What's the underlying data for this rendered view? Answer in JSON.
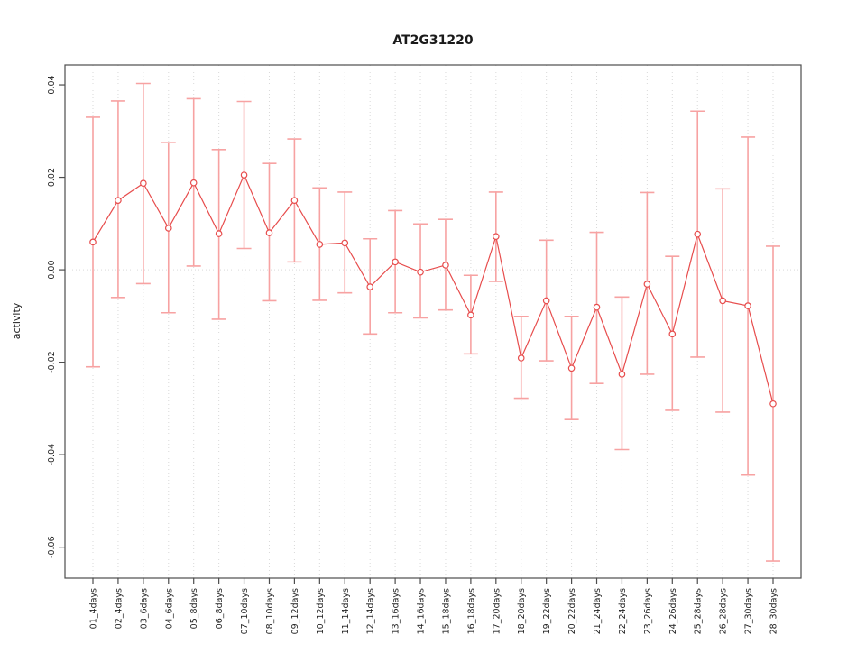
{
  "chart_data": {
    "type": "scatter",
    "subtype": "points-with-error-bars",
    "title": "AT2G31220",
    "xlabel": "",
    "ylabel": "activity",
    "legend_position": "none",
    "categories": [
      "01_4days",
      "02_4days",
      "03_6days",
      "04_6days",
      "05_8days",
      "06_8days",
      "07_10days",
      "08_10days",
      "09_12days",
      "10_12days",
      "11_14days",
      "12_14days",
      "13_16days",
      "14_16days",
      "15_18days",
      "16_18days",
      "17_20days",
      "18_20days",
      "19_22days",
      "20_22days",
      "21_24days",
      "22_24days",
      "23_26days",
      "24_26days",
      "25_28days",
      "26_28days",
      "27_30days",
      "28_30days"
    ],
    "series": [
      {
        "name": "activity",
        "means": [
          0.006,
          0.015,
          0.0187,
          0.009,
          0.0188,
          0.0078,
          0.0205,
          0.008,
          0.015,
          0.0055,
          0.0058,
          -0.0037,
          0.0017,
          -0.0005,
          0.001,
          -0.0098,
          0.0072,
          -0.0191,
          -0.0067,
          -0.0213,
          -0.0081,
          -0.0226,
          -0.0031,
          -0.0139,
          0.0077,
          -0.0067,
          -0.0078,
          -0.029
        ],
        "lower": [
          -0.021,
          -0.006,
          -0.003,
          -0.0093,
          0.0008,
          -0.0107,
          0.0046,
          -0.0067,
          0.0017,
          -0.0066,
          -0.005,
          -0.0139,
          -0.0093,
          -0.0104,
          -0.0087,
          -0.0182,
          -0.0025,
          -0.0278,
          -0.0197,
          -0.0324,
          -0.0246,
          -0.0389,
          -0.0226,
          -0.0304,
          -0.0189,
          -0.0308,
          -0.0444,
          -0.063
        ],
        "upper": [
          0.033,
          0.0365,
          0.0403,
          0.0275,
          0.037,
          0.026,
          0.0364,
          0.023,
          0.0283,
          0.0177,
          0.0168,
          0.0067,
          0.0128,
          0.0099,
          0.0109,
          -0.0012,
          0.0168,
          -0.0101,
          0.0064,
          -0.0101,
          0.0081,
          -0.0059,
          0.0167,
          0.0029,
          0.0343,
          0.0175,
          0.0287,
          0.0051
        ]
      }
    ],
    "yticks": {
      "values": [
        0.04,
        0.02,
        0.0,
        -0.02,
        -0.04,
        -0.06
      ],
      "labels": [
        "0.04",
        "0.02",
        "0.00",
        "-0.02",
        "-0.04",
        "-0.06"
      ]
    },
    "ylim": [
      -0.0667,
      0.0443
    ],
    "grid": {
      "vertical": "dotted line at every category",
      "horizontal": "dotted line at y = 0 only",
      "style": "dotted"
    },
    "point_style": "open-circle",
    "colors": {
      "point_line": "#e74c4c",
      "error_bar": "#f7a2a2",
      "grid": "#d9d9d9",
      "axis": "#4d4d4d",
      "text": "#1a1a1a"
    }
  }
}
